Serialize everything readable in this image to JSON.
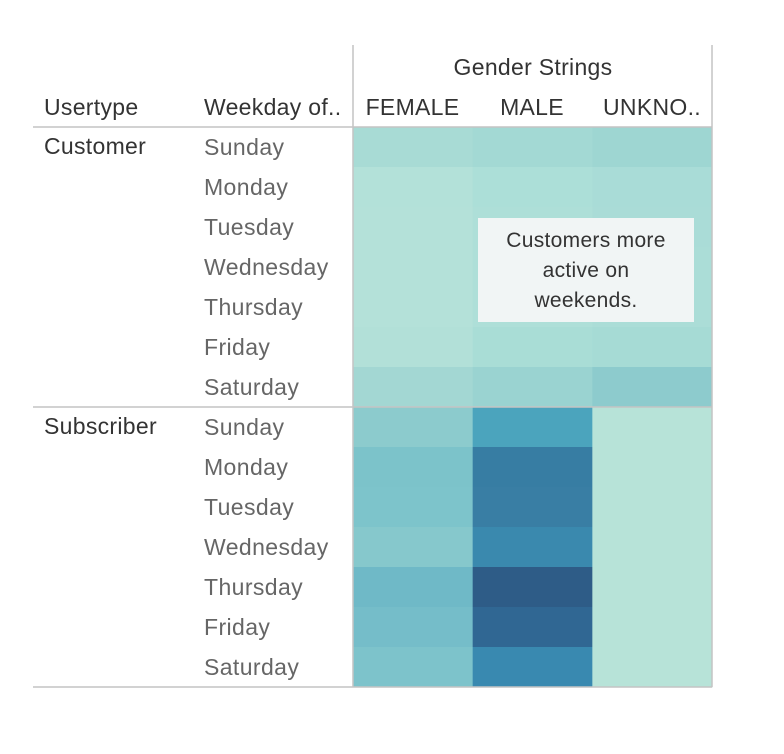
{
  "chart_data": {
    "type": "heatmap",
    "column_header_title": "Gender Strings",
    "row_header_1": "Usertype",
    "row_header_2": "Weekday of..",
    "columns": [
      "FEMALE",
      "MALE",
      "UNKNO.."
    ],
    "days": [
      "Sunday",
      "Monday",
      "Tuesday",
      "Wednesday",
      "Thursday",
      "Friday",
      "Saturday"
    ],
    "groups": [
      {
        "name": "Customer",
        "colors": [
          [
            "#a8dbd5",
            "#a3d9d4",
            "#9ed6d2"
          ],
          [
            "#b3e1d9",
            "#acdfd8",
            "#a9dcd7"
          ],
          [
            "#b4e1d9",
            "#aedfd8",
            "#aadcd7"
          ],
          [
            "#b4e1d9",
            "#aedfd8",
            "#abddd7"
          ],
          [
            "#b4e1d9",
            "#aedfd8",
            "#abddd7"
          ],
          [
            "#b2e0d8",
            "#a9ddd6",
            "#a6dbd5"
          ],
          [
            "#a3d7d3",
            "#9ad3d1",
            "#8dcbcd"
          ]
        ]
      },
      {
        "name": "Subscriber",
        "colors": [
          [
            "#8ccbcd",
            "#4ba4bd",
            "#b7e3d8"
          ],
          [
            "#7cc3ca",
            "#377da3",
            "#b7e3d8"
          ],
          [
            "#7dc4cb",
            "#397ea4",
            "#b7e3d8"
          ],
          [
            "#86c8cc",
            "#3a89ae",
            "#b7e3d8"
          ],
          [
            "#6fb9c7",
            "#2e5c87",
            "#b7e3d8"
          ],
          [
            "#75bdc9",
            "#306793",
            "#b7e3d8"
          ],
          [
            "#7dc3cb",
            "#3989b0",
            "#b7e3d8"
          ]
        ]
      }
    ],
    "annotation": [
      "Customers more",
      "active on",
      "weekends."
    ]
  }
}
